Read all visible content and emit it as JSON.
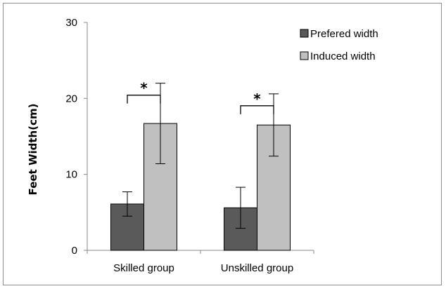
{
  "chart_data": {
    "type": "bar",
    "title": "",
    "xlabel": "",
    "ylabel": "Feet Width(cm)",
    "ylim": [
      0,
      30
    ],
    "yticks": [
      "0",
      "10",
      "20",
      "30"
    ],
    "categories": [
      "Skilled group",
      "Unskilled group"
    ],
    "series": [
      {
        "name": "Prefered width",
        "values": [
          6.1,
          5.6
        ],
        "errors": [
          1.6,
          2.7
        ],
        "color": "#5a5a5a"
      },
      {
        "name": "Induced width",
        "values": [
          16.7,
          16.5
        ],
        "errors": [
          5.3,
          4.1
        ],
        "color": "#c0c0c0"
      }
    ],
    "significance": [
      "*",
      "*"
    ],
    "grid": false,
    "legend": "top-right"
  }
}
